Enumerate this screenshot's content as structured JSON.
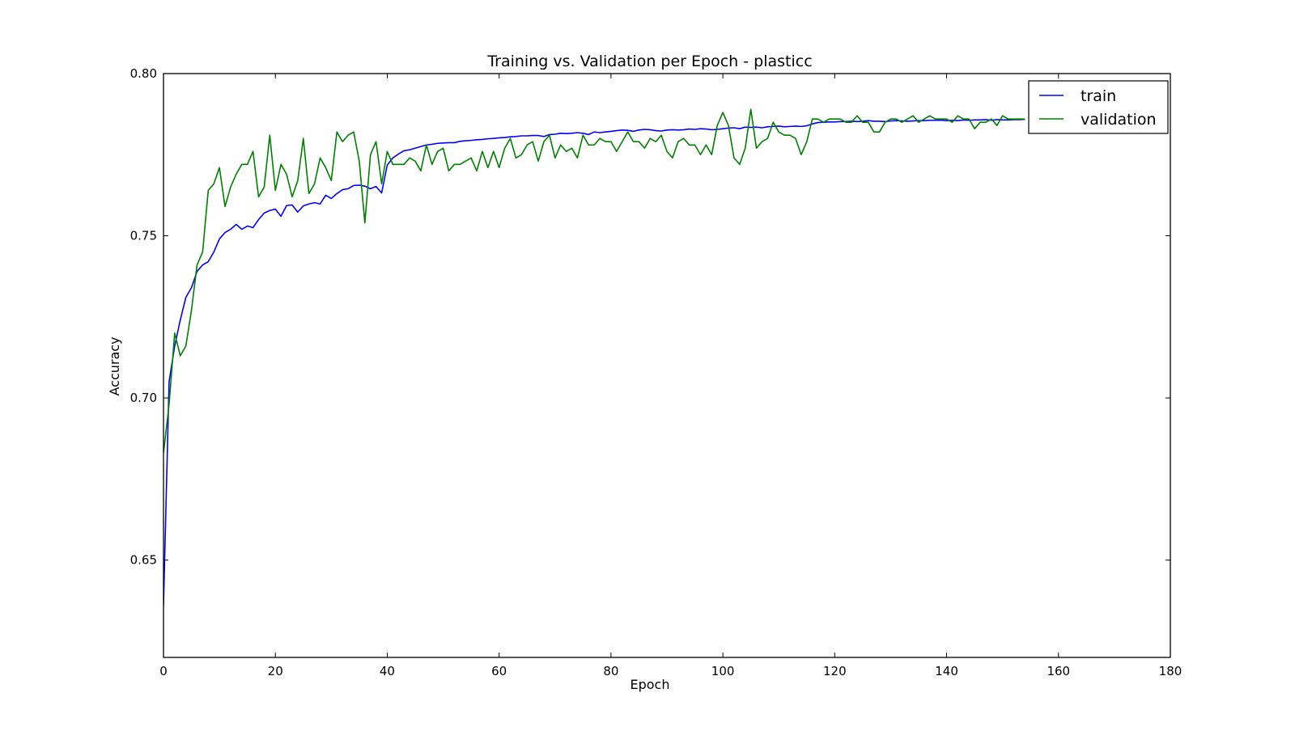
{
  "chart_data": {
    "type": "line",
    "title": "Training vs. Validation per Epoch - plasticc",
    "xlabel": "Epoch",
    "ylabel": "Accuracy",
    "xlim": [
      0,
      180
    ],
    "ylim": [
      0.62,
      0.8
    ],
    "xticks": [
      0,
      20,
      40,
      60,
      80,
      100,
      120,
      140,
      160,
      180
    ],
    "yticks": [
      0.65,
      0.7,
      0.75,
      0.8
    ],
    "xtick_labels": [
      "0",
      "20",
      "40",
      "60",
      "80",
      "100",
      "120",
      "140",
      "160",
      "180"
    ],
    "ytick_labels": [
      "0.65",
      "0.70",
      "0.75",
      "0.80"
    ],
    "grid": false,
    "legend_position": "top-right",
    "series": [
      {
        "name": "train",
        "color": "#0000ff",
        "x": [
          0,
          1,
          2,
          3,
          4,
          5,
          6,
          7,
          8,
          9,
          10,
          11,
          12,
          13,
          14,
          15,
          16,
          17,
          18,
          19,
          20,
          21,
          22,
          23,
          24,
          25,
          26,
          27,
          28,
          29,
          30,
          31,
          32,
          33,
          34,
          35,
          36,
          37,
          38,
          39,
          40,
          41,
          42,
          43,
          44,
          45,
          46,
          47,
          48,
          49,
          50,
          51,
          52,
          53,
          54,
          55,
          56,
          57,
          58,
          59,
          60,
          61,
          62,
          63,
          64,
          65,
          66,
          67,
          68,
          69,
          70,
          71,
          72,
          73,
          74,
          75,
          76,
          77,
          78,
          79,
          80,
          81,
          82,
          83,
          84,
          85,
          86,
          87,
          88,
          89,
          90,
          91,
          92,
          93,
          94,
          95,
          96,
          97,
          98,
          99,
          100,
          101,
          102,
          103,
          104,
          105,
          106,
          107,
          108,
          109,
          110,
          111,
          112,
          113,
          114,
          115,
          116,
          117,
          118,
          119,
          120,
          121,
          122,
          123,
          124,
          125,
          126,
          127,
          128,
          129,
          130,
          131,
          132,
          133,
          134,
          135,
          136,
          137,
          138,
          139,
          140,
          141,
          142,
          143,
          144,
          145,
          146,
          147,
          148,
          149,
          150,
          151,
          152,
          153,
          154
        ],
        "values": [
          0.636,
          0.705,
          0.716,
          0.724,
          0.731,
          0.734,
          0.739,
          0.741,
          0.742,
          0.745,
          0.749,
          0.751,
          0.752,
          0.7535,
          0.752,
          0.753,
          0.7525,
          0.755,
          0.757,
          0.7578,
          0.7582,
          0.756,
          0.7593,
          0.7595,
          0.7573,
          0.7592,
          0.7598,
          0.7602,
          0.7598,
          0.7625,
          0.7615,
          0.763,
          0.7642,
          0.7645,
          0.7655,
          0.7656,
          0.7653,
          0.7645,
          0.7652,
          0.7632,
          0.7718,
          0.774,
          0.7752,
          0.7762,
          0.7765,
          0.777,
          0.7775,
          0.778,
          0.7782,
          0.7785,
          0.7786,
          0.7787,
          0.7787,
          0.7791,
          0.7793,
          0.7794,
          0.7796,
          0.7797,
          0.7799,
          0.78,
          0.7802,
          0.7803,
          0.7805,
          0.7806,
          0.7808,
          0.7808,
          0.7809,
          0.7809,
          0.7806,
          0.7812,
          0.7813,
          0.7816,
          0.7815,
          0.7816,
          0.7818,
          0.7816,
          0.7812,
          0.782,
          0.7818,
          0.782,
          0.7822,
          0.7824,
          0.7826,
          0.7825,
          0.7822,
          0.7826,
          0.7828,
          0.7827,
          0.7824,
          0.7823,
          0.7826,
          0.7827,
          0.7826,
          0.7827,
          0.7829,
          0.7828,
          0.783,
          0.7829,
          0.7827,
          0.7828,
          0.783,
          0.7832,
          0.7833,
          0.783,
          0.7835,
          0.7834,
          0.7835,
          0.7833,
          0.7836,
          0.7837,
          0.7838,
          0.7836,
          0.7837,
          0.7838,
          0.7837,
          0.7839,
          0.7845,
          0.7849,
          0.785,
          0.7851,
          0.7851,
          0.7852,
          0.7852,
          0.7853,
          0.7852,
          0.7853,
          0.7855,
          0.7853,
          0.7853,
          0.7852,
          0.7854,
          0.7855,
          0.7854,
          0.7853,
          0.7854,
          0.7855,
          0.7855,
          0.7856,
          0.7856,
          0.7856,
          0.7855,
          0.7856,
          0.7855,
          0.7857,
          0.7856,
          0.7857,
          0.7857,
          0.7858,
          0.7856,
          0.7858,
          0.7857,
          0.7857,
          0.7858,
          0.7858,
          0.7859
        ]
      },
      {
        "name": "validation",
        "color": "#008000",
        "x": [
          0,
          1,
          2,
          3,
          4,
          5,
          6,
          7,
          8,
          9,
          10,
          11,
          12,
          13,
          14,
          15,
          16,
          17,
          18,
          19,
          20,
          21,
          22,
          23,
          24,
          25,
          26,
          27,
          28,
          29,
          30,
          31,
          32,
          33,
          34,
          35,
          36,
          37,
          38,
          39,
          40,
          41,
          42,
          43,
          44,
          45,
          46,
          47,
          48,
          49,
          50,
          51,
          52,
          53,
          54,
          55,
          56,
          57,
          58,
          59,
          60,
          61,
          62,
          63,
          64,
          65,
          66,
          67,
          68,
          69,
          70,
          71,
          72,
          73,
          74,
          75,
          76,
          77,
          78,
          79,
          80,
          81,
          82,
          83,
          84,
          85,
          86,
          87,
          88,
          89,
          90,
          91,
          92,
          93,
          94,
          95,
          96,
          97,
          98,
          99,
          100,
          101,
          102,
          103,
          104,
          105,
          106,
          107,
          108,
          109,
          110,
          111,
          112,
          113,
          114,
          115,
          116,
          117,
          118,
          119,
          120,
          121,
          122,
          123,
          124,
          125,
          126,
          127,
          128,
          129,
          130,
          131,
          132,
          133,
          134,
          135,
          136,
          137,
          138,
          139,
          140,
          141,
          142,
          143,
          144,
          145,
          146,
          147,
          148,
          149,
          150,
          151,
          152,
          153,
          154
        ],
        "values": [
          0.683,
          0.698,
          0.72,
          0.713,
          0.716,
          0.727,
          0.741,
          0.745,
          0.764,
          0.766,
          0.771,
          0.759,
          0.765,
          0.769,
          0.772,
          0.772,
          0.776,
          0.762,
          0.765,
          0.781,
          0.764,
          0.772,
          0.769,
          0.762,
          0.767,
          0.78,
          0.763,
          0.766,
          0.774,
          0.771,
          0.767,
          0.782,
          0.779,
          0.781,
          0.782,
          0.773,
          0.754,
          0.775,
          0.779,
          0.766,
          0.776,
          0.772,
          0.772,
          0.772,
          0.774,
          0.773,
          0.77,
          0.778,
          0.772,
          0.776,
          0.777,
          0.77,
          0.772,
          0.772,
          0.773,
          0.774,
          0.77,
          0.776,
          0.771,
          0.776,
          0.771,
          0.777,
          0.78,
          0.774,
          0.775,
          0.778,
          0.779,
          0.773,
          0.779,
          0.781,
          0.774,
          0.778,
          0.776,
          0.777,
          0.774,
          0.781,
          0.778,
          0.778,
          0.78,
          0.779,
          0.779,
          0.776,
          0.779,
          0.782,
          0.779,
          0.779,
          0.777,
          0.78,
          0.779,
          0.781,
          0.776,
          0.774,
          0.779,
          0.78,
          0.778,
          0.778,
          0.775,
          0.778,
          0.775,
          0.784,
          0.788,
          0.784,
          0.774,
          0.772,
          0.777,
          0.789,
          0.777,
          0.779,
          0.78,
          0.785,
          0.782,
          0.781,
          0.781,
          0.78,
          0.775,
          0.779,
          0.786,
          0.786,
          0.785,
          0.786,
          0.786,
          0.786,
          0.785,
          0.785,
          0.787,
          0.785,
          0.785,
          0.782,
          0.782,
          0.785,
          0.786,
          0.786,
          0.785,
          0.786,
          0.787,
          0.785,
          0.786,
          0.787,
          0.786,
          0.786,
          0.786,
          0.785,
          0.787,
          0.786,
          0.786,
          0.783,
          0.785,
          0.785,
          0.786,
          0.784,
          0.787,
          0.786,
          0.786,
          0.786,
          0.786
        ]
      }
    ]
  }
}
